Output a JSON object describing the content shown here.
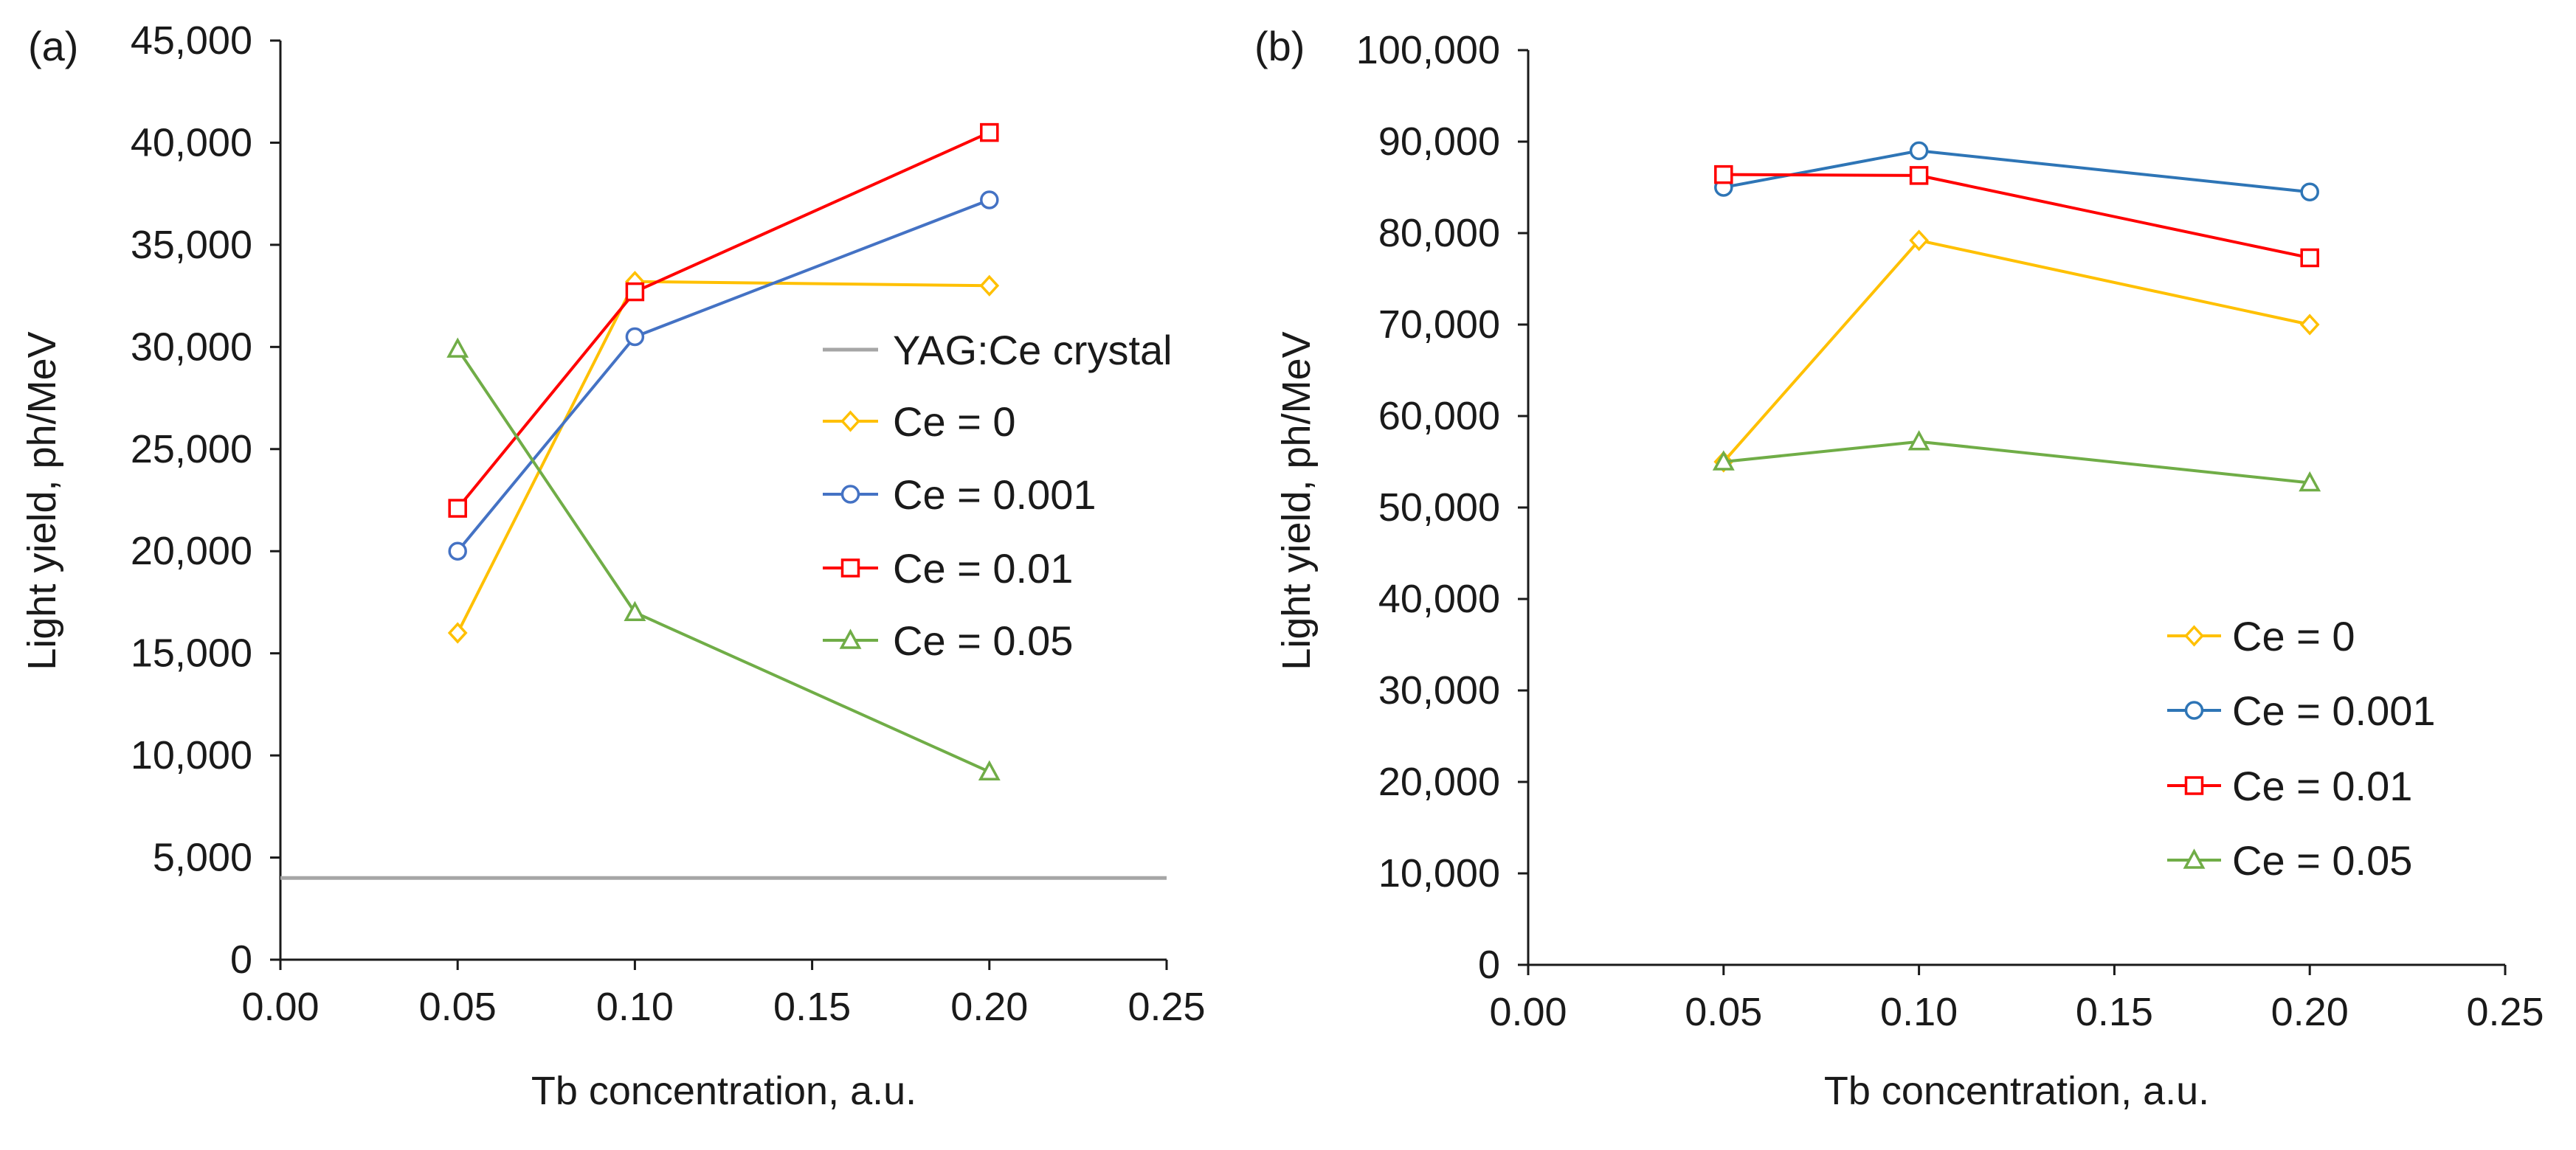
{
  "chart_data": [
    {
      "type": "line",
      "panel_label": "(a)",
      "xlabel": "Tb concentration, a.u.",
      "ylabel": "Light yield, ph/MeV",
      "xlim": [
        0,
        0.25
      ],
      "ylim": [
        0,
        45000
      ],
      "x_ticks": [
        "0.00",
        "0.05",
        "0.10",
        "0.15",
        "0.20",
        "0.25"
      ],
      "y_ticks": [
        "0",
        "5,000",
        "10,000",
        "15,000",
        "20,000",
        "25,000",
        "30,000",
        "35,000",
        "40,000",
        "45,000"
      ],
      "x": [
        0.05,
        0.1,
        0.2
      ],
      "reference_line": {
        "name": "YAG:Ce crystal",
        "value": 4000,
        "color": "#a6a6a6"
      },
      "series": [
        {
          "name": "Ce = 0",
          "marker": "diamond",
          "color": "#ffc000",
          "values": [
            16000,
            33200,
            33000
          ]
        },
        {
          "name": "Ce = 0.001",
          "marker": "circle",
          "color": "#4472c4",
          "values": [
            20000,
            30500,
            37200
          ]
        },
        {
          "name": "Ce = 0.01",
          "marker": "square",
          "color": "#ff0000",
          "values": [
            22100,
            32700,
            40500
          ]
        },
        {
          "name": "Ce = 0.05",
          "marker": "triangle",
          "color": "#70ad47",
          "values": [
            29900,
            17000,
            9200
          ]
        }
      ],
      "legend_position": "right"
    },
    {
      "type": "line",
      "panel_label": "(b)",
      "xlabel": "Tb concentration, a.u.",
      "ylabel": "Light yield, ph/MeV",
      "xlim": [
        0,
        0.25
      ],
      "ylim": [
        0,
        100000
      ],
      "x_ticks": [
        "0.00",
        "0.05",
        "0.10",
        "0.15",
        "0.20",
        "0.25"
      ],
      "y_ticks": [
        "0",
        "10,000",
        "20,000",
        "30,000",
        "40,000",
        "50,000",
        "60,000",
        "70,000",
        "80,000",
        "90,000",
        "100,000"
      ],
      "x": [
        0.05,
        0.1,
        0.2
      ],
      "series": [
        {
          "name": "Ce = 0",
          "marker": "diamond",
          "color": "#ffc000",
          "values": [
            55000,
            79200,
            70000
          ]
        },
        {
          "name": "Ce = 0.001",
          "marker": "circle",
          "color": "#2e75b6",
          "values": [
            85000,
            89000,
            84500
          ]
        },
        {
          "name": "Ce = 0.01",
          "marker": "square",
          "color": "#ff0000",
          "values": [
            86400,
            86300,
            77300
          ]
        },
        {
          "name": "Ce = 0.05",
          "marker": "triangle",
          "color": "#70ad47",
          "values": [
            55000,
            57200,
            52700
          ]
        }
      ],
      "legend_position": "lower-right"
    }
  ]
}
